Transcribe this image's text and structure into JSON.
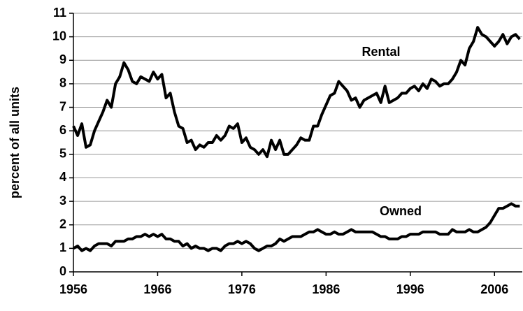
{
  "chart_data": {
    "type": "line",
    "y_label": "percent of all units",
    "xlim": [
      1956,
      2009.3
    ],
    "xticks": [
      1956,
      1966,
      1976,
      1986,
      1996,
      2006
    ],
    "ylim": [
      0,
      11
    ],
    "yticks": [
      0,
      1,
      2,
      3,
      4,
      5,
      6,
      7,
      8,
      9,
      10,
      11
    ],
    "grid": true,
    "x": [
      1956,
      1956.5,
      1957,
      1957.5,
      1958,
      1958.5,
      1959,
      1959.5,
      1960,
      1960.5,
      1961,
      1961.5,
      1962,
      1962.5,
      1963,
      1963.5,
      1964,
      1964.5,
      1965,
      1965.5,
      1966,
      1966.5,
      1967,
      1967.5,
      1968,
      1968.5,
      1969,
      1969.5,
      1970,
      1970.5,
      1971,
      1971.5,
      1972,
      1972.5,
      1973,
      1973.5,
      1974,
      1974.5,
      1975,
      1975.5,
      1976,
      1976.5,
      1977,
      1977.5,
      1978,
      1978.5,
      1979,
      1979.5,
      1980,
      1980.5,
      1981,
      1981.5,
      1982,
      1982.5,
      1983,
      1983.5,
      1984,
      1984.5,
      1985,
      1985.5,
      1986,
      1986.5,
      1987,
      1987.5,
      1988,
      1988.5,
      1989,
      1989.5,
      1990,
      1990.5,
      1991,
      1991.5,
      1992,
      1992.5,
      1993,
      1993.5,
      1994,
      1994.5,
      1995,
      1995.5,
      1996,
      1996.5,
      1997,
      1997.5,
      1998,
      1998.5,
      1999,
      1999.5,
      2000,
      2000.5,
      2001,
      2001.5,
      2002,
      2002.5,
      2003,
      2003.5,
      2004,
      2004.5,
      2005,
      2005.5,
      2006,
      2006.5,
      2007,
      2007.5,
      2008,
      2008.5,
      2009
    ],
    "series": [
      {
        "name": "Rental",
        "color": "#000000",
        "values": [
          6.2,
          5.8,
          6.3,
          5.3,
          5.4,
          6.0,
          6.4,
          6.8,
          7.3,
          7.0,
          8.0,
          8.3,
          8.9,
          8.6,
          8.1,
          8.0,
          8.3,
          8.2,
          8.1,
          8.5,
          8.2,
          8.4,
          7.4,
          7.6,
          6.8,
          6.2,
          6.1,
          5.5,
          5.6,
          5.2,
          5.4,
          5.3,
          5.5,
          5.5,
          5.8,
          5.6,
          5.8,
          6.2,
          6.1,
          6.3,
          5.5,
          5.7,
          5.3,
          5.2,
          5.0,
          5.2,
          4.9,
          5.6,
          5.2,
          5.6,
          5.0,
          5.0,
          5.2,
          5.4,
          5.7,
          5.6,
          5.6,
          6.2,
          6.2,
          6.7,
          7.1,
          7.5,
          7.6,
          8.1,
          7.9,
          7.7,
          7.3,
          7.4,
          7.0,
          7.3,
          7.4,
          7.5,
          7.6,
          7.2,
          7.9,
          7.2,
          7.3,
          7.4,
          7.6,
          7.6,
          7.8,
          7.9,
          7.7,
          8.0,
          7.8,
          8.2,
          8.1,
          7.9,
          8.0,
          8.0,
          8.2,
          8.5,
          9.0,
          8.8,
          9.5,
          9.8,
          10.4,
          10.1,
          10.0,
          9.8,
          9.6,
          9.8,
          10.1,
          9.7,
          10.0,
          10.1,
          9.9
        ]
      },
      {
        "name": "Owned",
        "color": "#000000",
        "values": [
          1.0,
          1.1,
          0.9,
          1.0,
          0.9,
          1.1,
          1.2,
          1.2,
          1.2,
          1.1,
          1.3,
          1.3,
          1.3,
          1.4,
          1.4,
          1.5,
          1.5,
          1.6,
          1.5,
          1.6,
          1.5,
          1.6,
          1.4,
          1.4,
          1.3,
          1.3,
          1.1,
          1.2,
          1.0,
          1.1,
          1.0,
          1.0,
          0.9,
          1.0,
          1.0,
          0.9,
          1.1,
          1.2,
          1.2,
          1.3,
          1.2,
          1.3,
          1.2,
          1.0,
          0.9,
          1.0,
          1.1,
          1.1,
          1.2,
          1.4,
          1.3,
          1.4,
          1.5,
          1.5,
          1.5,
          1.6,
          1.7,
          1.7,
          1.8,
          1.7,
          1.6,
          1.6,
          1.7,
          1.6,
          1.6,
          1.7,
          1.8,
          1.7,
          1.7,
          1.7,
          1.7,
          1.7,
          1.6,
          1.5,
          1.5,
          1.4,
          1.4,
          1.4,
          1.5,
          1.5,
          1.6,
          1.6,
          1.6,
          1.7,
          1.7,
          1.7,
          1.7,
          1.6,
          1.6,
          1.6,
          1.8,
          1.7,
          1.7,
          1.7,
          1.8,
          1.7,
          1.7,
          1.8,
          1.9,
          2.1,
          2.4,
          2.7,
          2.7,
          2.8,
          2.9,
          2.8,
          2.8
        ]
      }
    ]
  }
}
